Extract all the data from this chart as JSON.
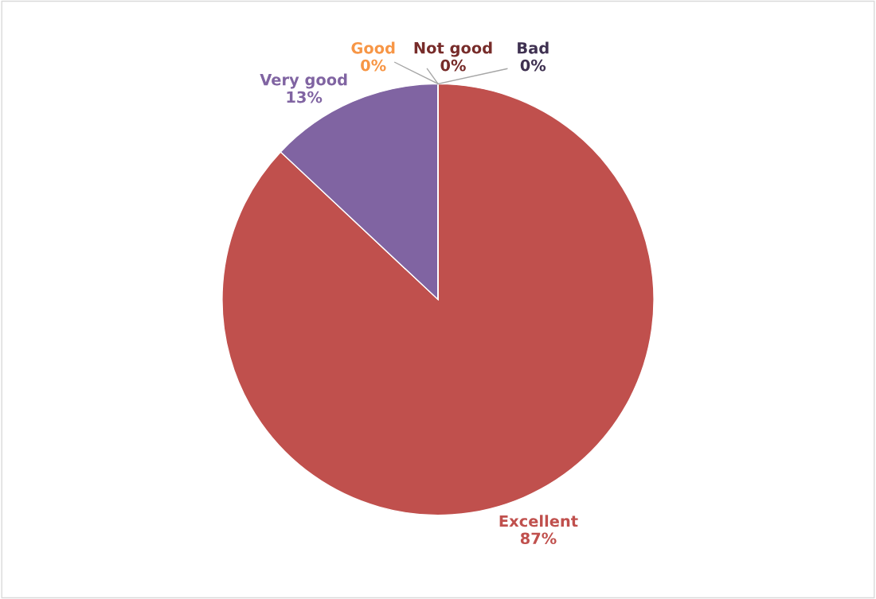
{
  "chart_data": {
    "type": "pie",
    "categories": [
      "Excellent",
      "Very good",
      "Good",
      "Not good",
      "Bad"
    ],
    "values": [
      87,
      13,
      0,
      0,
      0
    ],
    "value_labels": [
      "87%",
      "13%",
      "0%",
      "0%",
      "0%"
    ],
    "colors": [
      "#c0504d",
      "#8064a2",
      "#f79646",
      "#772c2a",
      "#3f3151"
    ],
    "legend": false
  }
}
